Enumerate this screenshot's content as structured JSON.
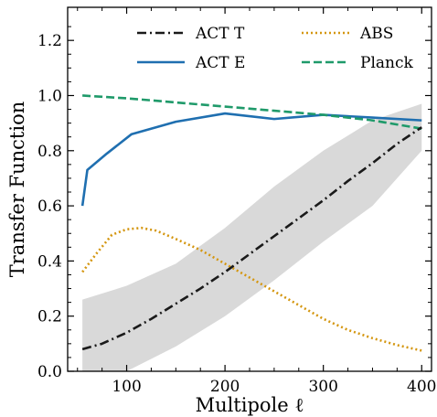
{
  "chart_data": {
    "type": "line",
    "xlabel": "Multipole ℓ",
    "ylabel": "Transfer Function",
    "xlim": [
      40,
      410
    ],
    "ylim": [
      0.0,
      1.32
    ],
    "xticks": [
      100,
      200,
      300,
      400
    ],
    "yticks": [
      0.0,
      0.2,
      0.4,
      0.6,
      0.8,
      1.0,
      1.2
    ],
    "ytick_labels": [
      "0.0",
      "0.2",
      "0.4",
      "0.6",
      "0.8",
      "1.0",
      "1.2"
    ],
    "grid": false,
    "legend_position": "top-right",
    "band": {
      "for_series": "ACT T",
      "color": "#d9d9d9",
      "x": [
        55,
        100,
        150,
        200,
        250,
        300,
        350,
        400
      ],
      "lower": [
        0.0,
        0.0,
        0.09,
        0.2,
        0.33,
        0.47,
        0.6,
        0.8
      ],
      "upper": [
        0.26,
        0.31,
        0.39,
        0.52,
        0.67,
        0.8,
        0.91,
        0.97
      ]
    },
    "series": [
      {
        "name": "ACT T",
        "color": "#1a1a1a",
        "dash": "dashdot",
        "x": [
          55,
          75,
          100,
          125,
          150,
          175,
          200,
          225,
          250,
          275,
          300,
          325,
          350,
          375,
          400
        ],
        "values": [
          0.08,
          0.1,
          0.14,
          0.19,
          0.245,
          0.3,
          0.36,
          0.425,
          0.49,
          0.555,
          0.62,
          0.69,
          0.755,
          0.825,
          0.885
        ]
      },
      {
        "name": "ACT E",
        "color": "#1f6fb0",
        "dash": "solid",
        "x": [
          55,
          60,
          80,
          105,
          150,
          200,
          250,
          300,
          350,
          400
        ],
        "values": [
          0.6,
          0.73,
          0.79,
          0.86,
          0.905,
          0.935,
          0.915,
          0.93,
          0.92,
          0.91
        ]
      },
      {
        "name": "ABS",
        "color": "#d4960f",
        "dash": "dotted",
        "x": [
          55,
          70,
          85,
          100,
          115,
          130,
          150,
          175,
          200,
          225,
          250,
          275,
          300,
          325,
          350,
          375,
          400
        ],
        "values": [
          0.36,
          0.43,
          0.495,
          0.515,
          0.52,
          0.51,
          0.48,
          0.44,
          0.39,
          0.34,
          0.29,
          0.24,
          0.19,
          0.15,
          0.12,
          0.095,
          0.075
        ]
      },
      {
        "name": "Planck",
        "color": "#1f9a6a",
        "dash": "dashed",
        "x": [
          55,
          100,
          150,
          200,
          250,
          300,
          350,
          400
        ],
        "values": [
          1.0,
          0.99,
          0.975,
          0.96,
          0.945,
          0.93,
          0.91,
          0.88
        ]
      }
    ],
    "legend_columns": [
      [
        "ACT T",
        "ACT E"
      ],
      [
        "ABS",
        "Planck"
      ]
    ]
  }
}
